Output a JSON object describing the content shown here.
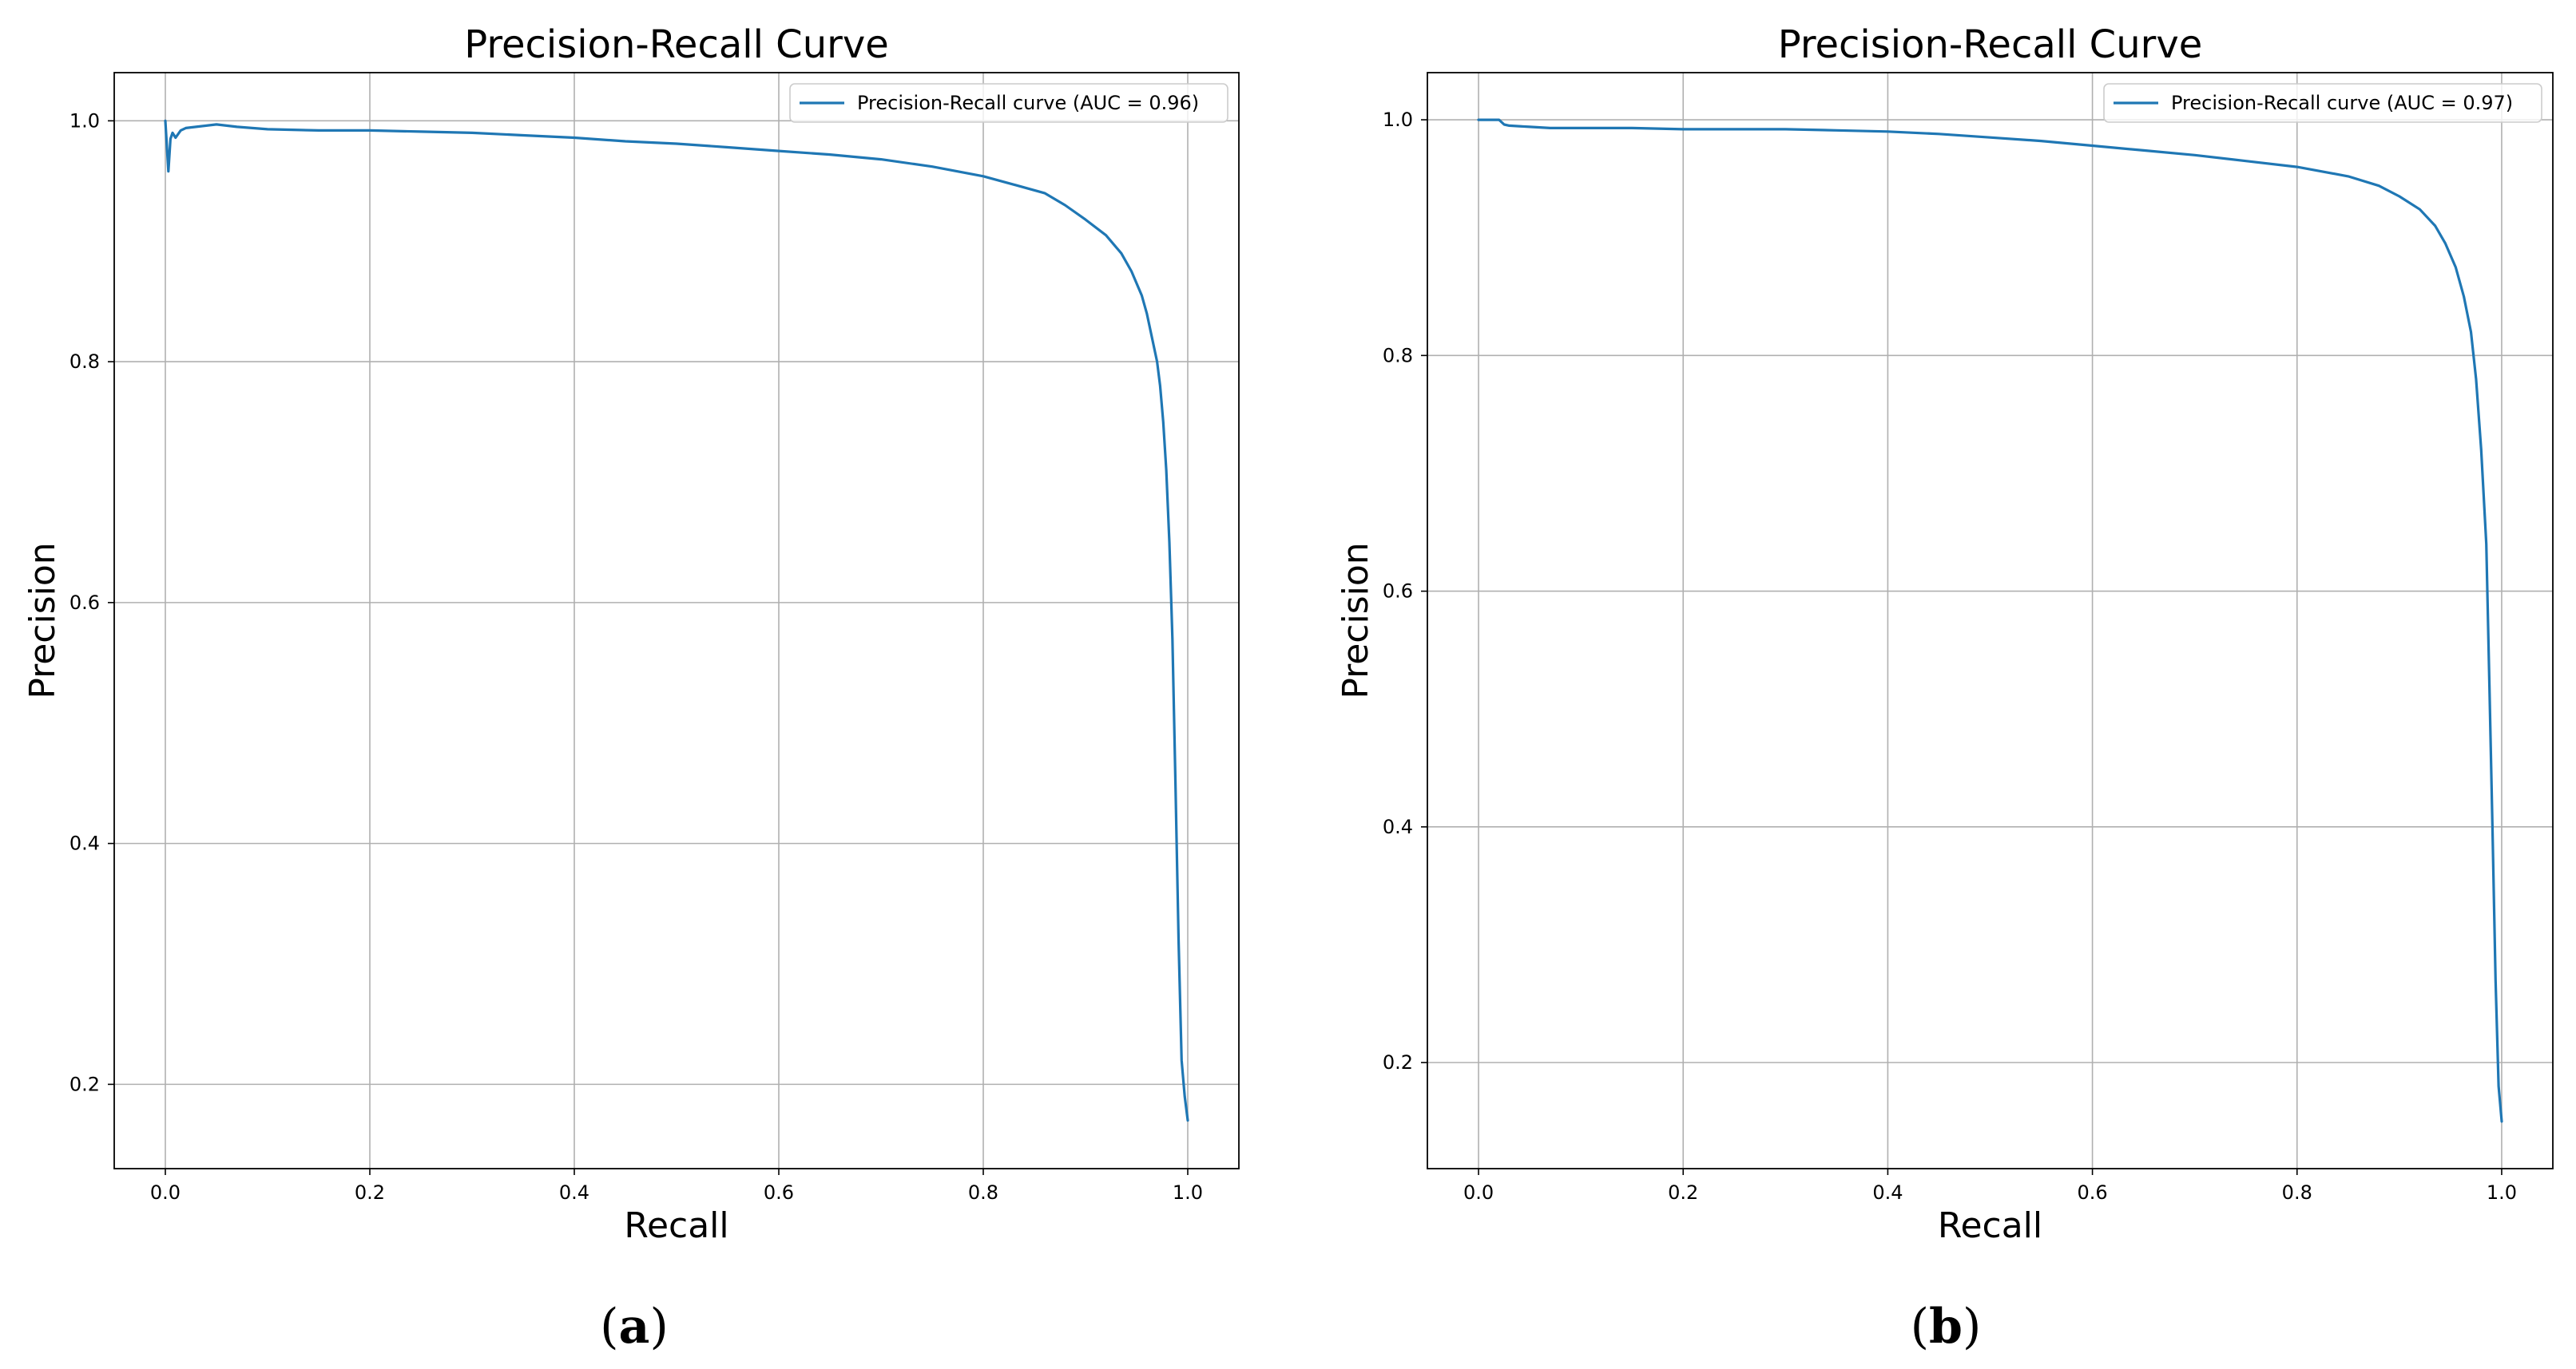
{
  "figure": {
    "captions": [
      {
        "open": "(",
        "letter": "a",
        "close": ")"
      },
      {
        "open": "(",
        "letter": "b",
        "close": ")"
      }
    ]
  },
  "chart_data": [
    {
      "type": "line",
      "title": "Precision-Recall Curve",
      "xlabel": "Recall",
      "ylabel": "Precision",
      "xlim": [
        -0.05,
        1.05
      ],
      "ylim": [
        0.13,
        1.04
      ],
      "xticks": [
        0.0,
        0.2,
        0.4,
        0.6,
        0.8,
        1.0
      ],
      "xtick_labels": [
        "0.0",
        "0.2",
        "0.4",
        "0.6",
        "0.8",
        "1.0"
      ],
      "yticks": [
        0.2,
        0.4,
        0.6,
        0.8,
        1.0
      ],
      "ytick_labels": [
        "0.2",
        "0.4",
        "0.6",
        "0.8",
        "1.0"
      ],
      "grid": true,
      "legend_position": "top-right",
      "series": [
        {
          "name": "Precision-Recall curve (AUC = 0.96)",
          "color": "#1f77b4",
          "x": [
            0.0,
            0.003,
            0.005,
            0.007,
            0.01,
            0.015,
            0.02,
            0.03,
            0.05,
            0.07,
            0.1,
            0.15,
            0.2,
            0.25,
            0.3,
            0.35,
            0.4,
            0.45,
            0.5,
            0.55,
            0.6,
            0.65,
            0.7,
            0.75,
            0.8,
            0.83,
            0.86,
            0.88,
            0.9,
            0.92,
            0.935,
            0.945,
            0.955,
            0.96,
            0.965,
            0.97,
            0.973,
            0.976,
            0.979,
            0.982,
            0.985,
            0.988,
            0.991,
            0.994,
            0.997,
            1.0
          ],
          "y": [
            1.0,
            0.958,
            0.985,
            0.99,
            0.986,
            0.992,
            0.994,
            0.995,
            0.997,
            0.995,
            0.993,
            0.992,
            0.992,
            0.991,
            0.99,
            0.988,
            0.986,
            0.983,
            0.981,
            0.978,
            0.975,
            0.972,
            0.968,
            0.962,
            0.954,
            0.947,
            0.94,
            0.93,
            0.918,
            0.905,
            0.89,
            0.875,
            0.855,
            0.84,
            0.82,
            0.8,
            0.78,
            0.75,
            0.71,
            0.65,
            0.57,
            0.45,
            0.32,
            0.22,
            0.19,
            0.17
          ]
        }
      ]
    },
    {
      "type": "line",
      "title": "Precision-Recall Curve",
      "xlabel": "Recall",
      "ylabel": "Precision",
      "xlim": [
        -0.05,
        1.05
      ],
      "ylim": [
        0.11,
        1.04
      ],
      "xticks": [
        0.0,
        0.2,
        0.4,
        0.6,
        0.8,
        1.0
      ],
      "xtick_labels": [
        "0.0",
        "0.2",
        "0.4",
        "0.6",
        "0.8",
        "1.0"
      ],
      "yticks": [
        0.2,
        0.4,
        0.6,
        0.8,
        1.0
      ],
      "ytick_labels": [
        "0.2",
        "0.4",
        "0.6",
        "0.8",
        "1.0"
      ],
      "grid": true,
      "legend_position": "top-right",
      "series": [
        {
          "name": "Precision-Recall curve (AUC = 0.97)",
          "color": "#1f77b4",
          "x": [
            0.0,
            0.01,
            0.02,
            0.025,
            0.03,
            0.05,
            0.07,
            0.1,
            0.15,
            0.2,
            0.25,
            0.3,
            0.35,
            0.4,
            0.45,
            0.5,
            0.55,
            0.6,
            0.65,
            0.7,
            0.75,
            0.8,
            0.85,
            0.88,
            0.9,
            0.92,
            0.935,
            0.945,
            0.955,
            0.963,
            0.97,
            0.975,
            0.98,
            0.985,
            0.988,
            0.991,
            0.994,
            0.997,
            1.0
          ],
          "y": [
            1.0,
            1.0,
            1.0,
            0.996,
            0.995,
            0.994,
            0.993,
            0.993,
            0.993,
            0.992,
            0.992,
            0.992,
            0.991,
            0.99,
            0.988,
            0.985,
            0.982,
            0.978,
            0.974,
            0.97,
            0.965,
            0.96,
            0.952,
            0.944,
            0.935,
            0.924,
            0.91,
            0.895,
            0.875,
            0.85,
            0.82,
            0.78,
            0.72,
            0.64,
            0.52,
            0.4,
            0.27,
            0.18,
            0.15
          ]
        }
      ]
    }
  ]
}
